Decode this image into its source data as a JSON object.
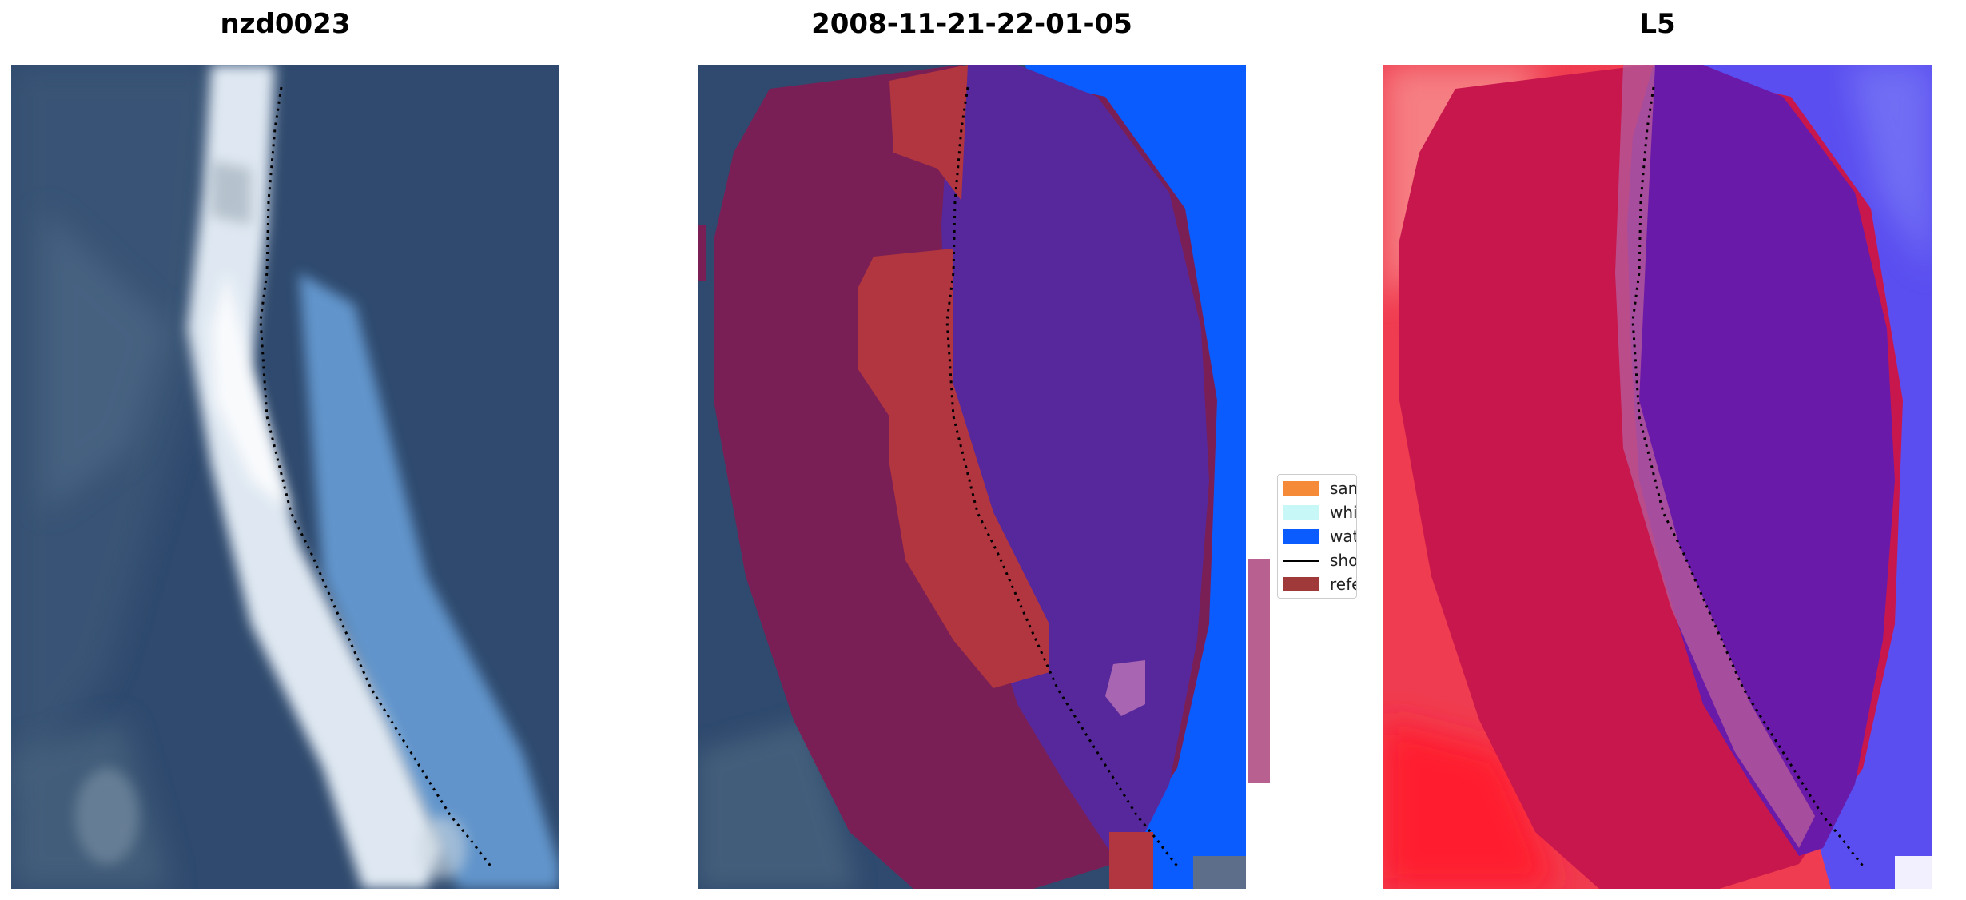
{
  "panels": [
    {
      "title": "nzd0023"
    },
    {
      "title": "2008-11-21-22-01-05"
    },
    {
      "title": "L5"
    }
  ],
  "legend": {
    "items": [
      {
        "label": "sand",
        "color": "#f58a38",
        "kind": "patch"
      },
      {
        "label": "whitew",
        "color": "#c7f7f7",
        "kind": "patch"
      },
      {
        "label": "water",
        "color": "#0a5cff",
        "kind": "patch"
      },
      {
        "label": "shorel",
        "color": "#000000",
        "kind": "line"
      },
      {
        "label": "referer",
        "color": "#a03a3a",
        "kind": "patch"
      }
    ]
  },
  "colors": {
    "sea_deep": "#2f4a6e",
    "beach_white": "#dfe8f2",
    "surf_light_blue": "#8fc0ee",
    "sand_overlay": "#7a1f55",
    "reference_red": "#b2363f",
    "water_class_purple": "#57289c",
    "water_blue": "#0a5cff",
    "mndwi_red": "#f03c50",
    "mndwi_blue": "#5a4ef0"
  }
}
